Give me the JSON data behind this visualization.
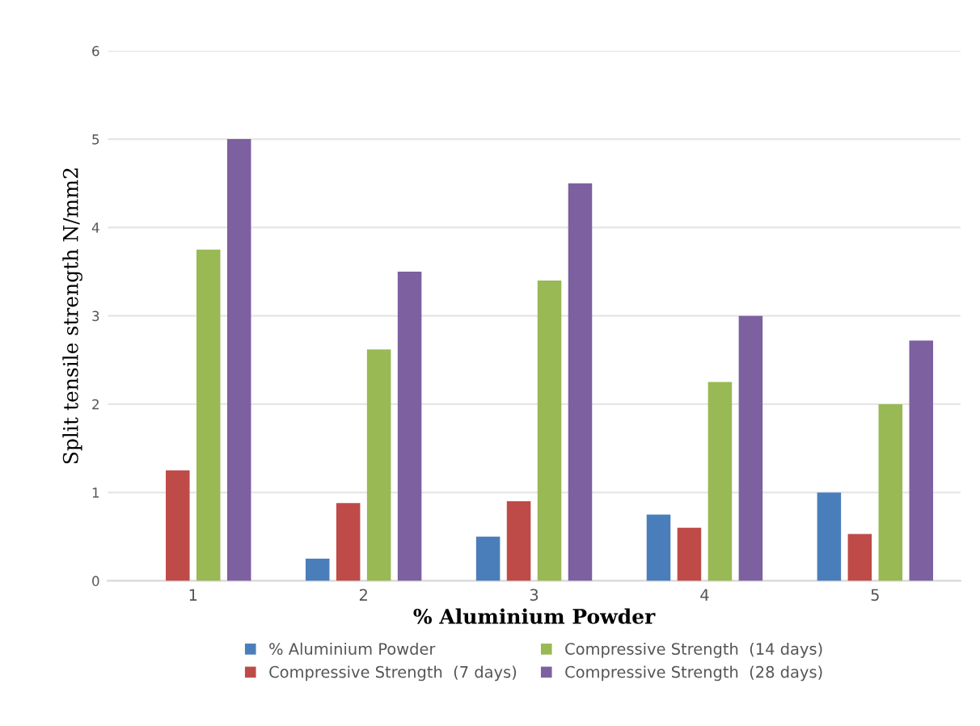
{
  "chart_data": {
    "type": "bar",
    "xlabel": "% Aluminium Powder",
    "ylabel": "Split tensile strength N/mm2",
    "categories": [
      "1",
      "2",
      "3",
      "4",
      "5"
    ],
    "series": [
      {
        "name": "% Aluminium Powder",
        "color": "#4a7ebb",
        "values": [
          0,
          0.25,
          0.5,
          0.75,
          1.0
        ]
      },
      {
        "name": "Compressive Strength  (7 days)",
        "color": "#be4b48",
        "values": [
          1.25,
          0.88,
          0.9,
          0.6,
          0.53
        ]
      },
      {
        "name": "Compressive Strength  (14 days)",
        "color": "#98b954",
        "values": [
          3.75,
          2.62,
          3.4,
          2.25,
          2.0
        ]
      },
      {
        "name": "Compressive Strength  (28 days)",
        "color": "#7d60a0",
        "values": [
          5.0,
          3.5,
          4.5,
          3.0,
          2.72
        ]
      }
    ],
    "ylim": [
      0,
      6
    ],
    "yticks": [
      0,
      1,
      2,
      3,
      4,
      5,
      6
    ],
    "grid": "y",
    "legend": "bottom"
  }
}
